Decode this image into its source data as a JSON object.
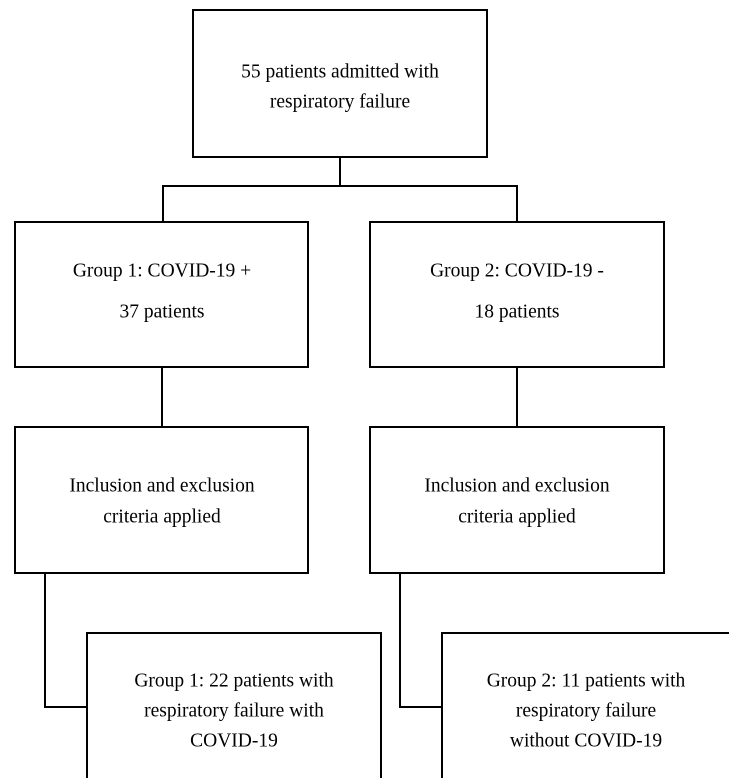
{
  "nodes": [
    {
      "lines": [
        "55 patients admitted with",
        "respiratory failure"
      ]
    },
    {
      "lines": [
        "Group 1: COVID-19 +",
        "37 patients"
      ]
    },
    {
      "lines": [
        "Group 2: COVID-19 -",
        "18 patients"
      ]
    },
    {
      "lines": [
        "Inclusion and exclusion",
        "criteria applied"
      ]
    },
    {
      "lines": [
        "Inclusion and exclusion",
        "criteria applied"
      ]
    },
    {
      "lines": [
        "Group 1: 22 patients with",
        "respiratory failure with",
        "COVID-19"
      ]
    },
    {
      "lines": [
        "Group 2: 11 patients with",
        "respiratory failure",
        "without COVID-19"
      ]
    }
  ]
}
